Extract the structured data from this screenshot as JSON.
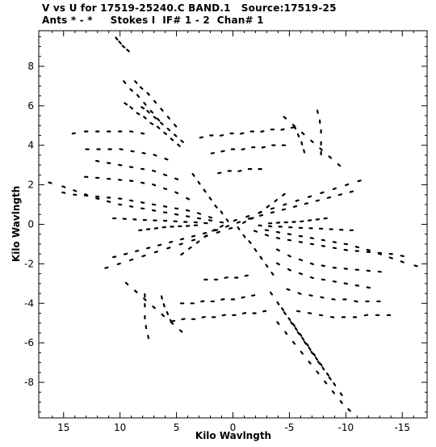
{
  "header": {
    "line1": "V vs U for 17519-25240.C BAND.1   Source:17519-25",
    "line2": "Ants * - *     Stokes I  IF# 1 - 2  Chan# 1"
  },
  "chart_data": {
    "type": "scatter",
    "title": "V vs U for 17519-25240.C BAND.1   Source:17519-25",
    "subtitle": "Ants * - *     Stokes I  IF# 1 - 2  Chan# 1",
    "xlabel": "Kilo Wavlngth",
    "ylabel": "Kilo Wavlngth",
    "x_reversed": true,
    "xlim": [
      17.2,
      -17.2
    ],
    "ylim": [
      -9.8,
      9.8
    ],
    "xticks": [
      15,
      10,
      5,
      0,
      -5,
      -10,
      -15
    ],
    "xtick_labels": [
      "15",
      "10",
      "5",
      "0",
      "-5",
      "-10",
      "-15"
    ],
    "yticks": [
      8,
      6,
      4,
      2,
      0,
      -2,
      -4,
      -6,
      -8
    ],
    "ytick_labels": [
      "8",
      "6",
      "4",
      "2",
      "0",
      "-2",
      "-4",
      "-6",
      "-8"
    ],
    "grid": false,
    "marker_color": "#000000",
    "track_description": "uv-coverage tracks: each series is one baseline arc; the symmetric (-u,-v) tracks are plotted too",
    "series": [
      {
        "u": [
          10.3,
          10.0,
          9.7,
          9.3
        ],
        "v": [
          9.4,
          9.2,
          9.0,
          8.8
        ]
      },
      {
        "u": [
          9.6,
          9.0,
          8.4,
          7.8,
          7.2,
          6.6
        ],
        "v": [
          7.2,
          6.8,
          6.5,
          6.1,
          5.7,
          5.3
        ]
      },
      {
        "u": [
          8.6,
          8.1,
          7.5,
          6.9,
          6.3,
          5.7,
          5.1
        ],
        "v": [
          7.2,
          6.9,
          6.6,
          6.2,
          5.8,
          5.4,
          5.0
        ]
      },
      {
        "u": [
          9.5,
          9.0,
          8.4,
          7.8,
          7.2,
          6.6,
          6.0,
          5.4,
          4.8
        ],
        "v": [
          6.1,
          5.9,
          5.6,
          5.4,
          5.1,
          4.9,
          4.6,
          4.3,
          4.0
        ]
      },
      {
        "u": [
          8.0,
          7.5,
          6.9,
          6.3,
          5.7,
          5.1,
          4.5
        ],
        "v": [
          5.9,
          5.7,
          5.4,
          5.1,
          4.8,
          4.5,
          4.2
        ]
      },
      {
        "u": [
          14.1,
          13.0,
          12.0,
          11.0,
          10.0,
          9.0,
          8.0
        ],
        "v": [
          4.6,
          4.7,
          4.7,
          4.7,
          4.7,
          4.7,
          4.6
        ]
      },
      {
        "u": [
          12.9,
          11.9,
          10.9,
          9.9,
          8.9,
          7.9,
          6.9,
          5.9
        ],
        "v": [
          3.8,
          3.8,
          3.8,
          3.8,
          3.7,
          3.6,
          3.5,
          3.3
        ]
      },
      {
        "u": [
          12.0,
          11.0,
          10.0,
          9.0,
          8.0,
          7.0,
          6.0,
          5.0
        ],
        "v": [
          3.2,
          3.1,
          3.0,
          2.9,
          2.8,
          2.7,
          2.5,
          2.3
        ]
      },
      {
        "u": [
          13.0,
          12.0,
          11.0,
          10.0,
          9.0,
          8.0,
          7.0,
          6.0,
          5.0,
          4.0
        ],
        "v": [
          2.4,
          2.35,
          2.3,
          2.25,
          2.2,
          2.1,
          2.0,
          1.8,
          1.6,
          1.3
        ]
      },
      {
        "u": [
          15.0,
          14.0,
          13.0,
          12.0,
          11.0,
          10.0,
          9.0,
          8.0,
          7.0,
          6.0,
          5.0,
          4.0,
          3.0,
          2.0
        ],
        "v": [
          1.6,
          1.5,
          1.45,
          1.4,
          1.35,
          1.3,
          1.2,
          1.1,
          1.0,
          0.9,
          0.8,
          0.7,
          0.55,
          0.35
        ]
      },
      {
        "u": [
          16.2,
          15.0,
          14.0,
          13.0,
          12.0,
          11.0,
          10.0,
          9.0,
          8.0,
          7.0,
          6.0,
          5.0,
          4.0,
          3.0,
          2.0,
          1.0
        ],
        "v": [
          2.1,
          1.9,
          1.7,
          1.5,
          1.3,
          1.15,
          1.0,
          0.9,
          0.8,
          0.7,
          0.6,
          0.5,
          0.4,
          0.3,
          0.2,
          0.1
        ]
      },
      {
        "u": [
          10.5,
          9.6,
          8.7,
          7.8,
          6.9,
          6.0,
          5.1,
          4.2,
          3.3,
          2.4
        ],
        "v": [
          0.3,
          0.28,
          0.25,
          0.22,
          0.2,
          0.18,
          0.15,
          0.12,
          0.1,
          0.06
        ]
      },
      {
        "u": [
          8.2,
          7.5,
          6.8,
          6.1,
          5.4,
          4.7,
          4.0,
          3.3
        ],
        "v": [
          -0.3,
          -0.25,
          -0.2,
          -0.15,
          -0.12,
          -0.1,
          -0.08,
          -0.05
        ]
      },
      {
        "u": [
          3.5,
          3.0,
          2.5,
          2.0,
          1.5,
          1.0,
          0.5
        ],
        "v": [
          2.5,
          2.1,
          1.7,
          1.3,
          0.9,
          0.6,
          0.2
        ]
      },
      {
        "u": [
          4.5,
          3.8,
          3.1,
          2.4,
          1.7,
          1.0
        ],
        "v": [
          -1.5,
          -1.2,
          -0.9,
          -0.6,
          -0.3,
          -0.1
        ]
      },
      {
        "u": [
          2.8,
          1.9,
          1.0,
          0.1,
          -0.8,
          -1.7,
          -2.6,
          -3.5,
          -4.4,
          -5.3
        ],
        "v": [
          4.4,
          4.5,
          4.5,
          4.6,
          4.6,
          4.7,
          4.7,
          4.8,
          4.8,
          4.9
        ]
      },
      {
        "u": [
          1.8,
          0.9,
          0.0,
          -0.9,
          -1.8,
          -2.7,
          -3.6,
          -4.5
        ],
        "v": [
          3.6,
          3.7,
          3.8,
          3.8,
          3.9,
          3.9,
          4.0,
          4.0
        ]
      },
      {
        "u": [
          1.2,
          0.3,
          -0.6,
          -1.5,
          -2.4
        ],
        "v": [
          2.6,
          2.7,
          2.7,
          2.8,
          2.8
        ]
      },
      {
        "u": [
          -4.6,
          -5.4,
          -6.2,
          -7.0,
          -7.8,
          -8.6,
          -9.4
        ],
        "v": [
          5.4,
          5.0,
          4.6,
          4.2,
          3.8,
          3.4,
          3.0
        ]
      },
      {
        "u": [
          -7.5,
          -7.7,
          -7.8,
          -7.8,
          -7.8
        ],
        "v": [
          5.7,
          5.2,
          4.7,
          4.1,
          3.6
        ]
      },
      {
        "u": [
          -5.5,
          -5.8,
          -6.1,
          -6.3
        ],
        "v": [
          4.9,
          4.5,
          4.1,
          3.7
        ]
      },
      {
        "u": [
          -0.2,
          -1.3,
          -2.4,
          -3.5,
          -4.6,
          -5.7,
          -6.8,
          -7.9,
          -9.0,
          -10.1,
          -11.2
        ],
        "v": [
          0.2,
          0.4,
          0.6,
          0.8,
          1.0,
          1.2,
          1.4,
          1.6,
          1.8,
          2.0,
          2.2
        ]
      },
      {
        "u": [
          -0.5,
          -1.5,
          -2.5,
          -3.5,
          -4.5,
          -5.5,
          -6.5,
          -7.5,
          -8.5,
          -9.5,
          -10.5
        ],
        "v": [
          0.1,
          0.3,
          0.45,
          0.6,
          0.75,
          0.9,
          1.05,
          1.2,
          1.35,
          1.5,
          1.65
        ]
      },
      {
        "u": [
          -10.3,
          -9.6,
          -8.9,
          -8.2,
          -7.5,
          -6.8,
          -6.1,
          -5.4,
          -4.7,
          -4.0
        ],
        "v": [
          -9.4,
          -9.0,
          -8.5,
          -8.0,
          -7.5,
          -7.0,
          -6.5,
          -6.0,
          -5.5,
          -5.0
        ]
      },
      {
        "u": [
          -9.6,
          -9.0,
          -8.4,
          -7.8,
          -7.2,
          -6.6,
          -6.0,
          -5.4
        ],
        "v": [
          -8.6,
          -8.1,
          -7.6,
          -7.1,
          -6.6,
          -6.1,
          -5.6,
          -5.1
        ]
      },
      {
        "u": [
          -8.6,
          -8.0,
          -7.4,
          -6.8,
          -6.2,
          -5.6,
          -5.0,
          -4.4
        ],
        "v": [
          -7.8,
          -7.3,
          -6.8,
          -6.3,
          -5.8,
          -5.3,
          -4.8,
          -4.3
        ]
      },
      {
        "u": [
          -7.6,
          -7.0,
          -6.4,
          -5.8,
          -5.2,
          -4.6,
          -4.0,
          -3.4
        ],
        "v": [
          -7.0,
          -6.5,
          -6.0,
          -5.5,
          -5.0,
          -4.5,
          -4.0,
          -3.5
        ]
      },
      {
        "u": [
          -13.8,
          -12.8,
          -11.8,
          -10.8,
          -9.8,
          -8.8,
          -7.8,
          -6.8,
          -5.8
        ],
        "v": [
          -4.6,
          -4.6,
          -4.6,
          -4.7,
          -4.7,
          -4.7,
          -4.6,
          -4.5,
          -4.4
        ]
      },
      {
        "u": [
          -12.9,
          -11.9,
          -10.9,
          -9.9,
          -8.9,
          -7.9,
          -6.9,
          -5.9,
          -4.9
        ],
        "v": [
          -3.9,
          -3.9,
          -3.9,
          -3.8,
          -3.8,
          -3.7,
          -3.6,
          -3.5,
          -3.3
        ]
      },
      {
        "u": [
          -12.0,
          -11.0,
          -10.0,
          -9.0,
          -8.0,
          -7.0,
          -6.0,
          -5.0,
          -4.0
        ],
        "v": [
          -3.2,
          -3.1,
          -3.0,
          -2.9,
          -2.8,
          -2.7,
          -2.5,
          -2.3,
          -2.0
        ]
      },
      {
        "u": [
          -15.0,
          -14.0,
          -13.0,
          -12.0,
          -11.0,
          -10.0,
          -9.0,
          -8.0,
          -7.0,
          -6.0,
          -5.0,
          -4.0,
          -3.0,
          -2.0
        ],
        "v": [
          -1.6,
          -1.5,
          -1.45,
          -1.4,
          -1.35,
          -1.3,
          -1.2,
          -1.1,
          -1.0,
          -0.9,
          -0.8,
          -0.7,
          -0.55,
          -0.35
        ]
      },
      {
        "u": [
          -16.2,
          -15.0,
          -14.0,
          -13.0,
          -12.0,
          -11.0,
          -10.0,
          -9.0,
          -8.0,
          -7.0,
          -6.0,
          -5.0,
          -4.0,
          -3.0
        ],
        "v": [
          -2.1,
          -1.9,
          -1.7,
          -1.5,
          -1.3,
          -1.15,
          -1.0,
          -0.9,
          -0.8,
          -0.7,
          -0.6,
          -0.5,
          -0.4,
          -0.3
        ]
      },
      {
        "u": [
          -13.0,
          -12.0,
          -11.0,
          -10.0,
          -9.0,
          -8.0,
          -7.0,
          -6.0,
          -5.0,
          -4.0
        ],
        "v": [
          -2.4,
          -2.35,
          -2.3,
          -2.25,
          -2.2,
          -2.1,
          -2.0,
          -1.8,
          -1.6,
          -1.3
        ]
      },
      {
        "u": [
          -3.5,
          -3.0,
          -2.5,
          -2.0,
          -1.5,
          -1.0,
          -0.5
        ],
        "v": [
          -2.5,
          -2.1,
          -1.7,
          -1.3,
          -0.9,
          -0.6,
          -0.2
        ]
      },
      {
        "u": [
          -4.5,
          -3.8,
          -3.1,
          -2.4,
          -1.7,
          -1.0
        ],
        "v": [
          1.5,
          1.2,
          0.9,
          0.6,
          0.3,
          0.1
        ]
      },
      {
        "u": [
          -2.8,
          -1.9,
          -1.0,
          -0.1,
          0.8,
          1.7,
          2.6,
          3.5,
          4.4,
          5.3
        ],
        "v": [
          -4.4,
          -4.5,
          -4.5,
          -4.6,
          -4.6,
          -4.7,
          -4.7,
          -4.8,
          -4.8,
          -4.9
        ]
      },
      {
        "u": [
          -1.8,
          -0.9,
          0.0,
          0.9,
          1.8,
          2.7,
          3.6,
          4.5
        ],
        "v": [
          -3.6,
          -3.7,
          -3.8,
          -3.8,
          -3.9,
          -3.9,
          -4.0,
          -4.0
        ]
      },
      {
        "u": [
          -1.2,
          -0.3,
          0.6,
          1.5,
          2.4
        ],
        "v": [
          -2.6,
          -2.7,
          -2.7,
          -2.8,
          -2.8
        ]
      },
      {
        "u": [
          4.6,
          5.4,
          6.2,
          7.0,
          7.8,
          8.6,
          9.4
        ],
        "v": [
          -5.4,
          -5.0,
          -4.6,
          -4.2,
          -3.8,
          -3.4,
          -3.0
        ]
      },
      {
        "u": [
          7.5,
          7.7,
          7.8,
          7.8,
          7.8
        ],
        "v": [
          -5.7,
          -5.2,
          -4.7,
          -4.1,
          -3.6
        ]
      },
      {
        "u": [
          5.5,
          5.8,
          6.1,
          6.3
        ],
        "v": [
          -4.9,
          -4.5,
          -4.1,
          -3.7
        ]
      },
      {
        "u": [
          0.2,
          1.3,
          2.4,
          3.5,
          4.6,
          5.7,
          6.8,
          7.9,
          9.0,
          10.1,
          11.2
        ],
        "v": [
          -0.2,
          -0.4,
          -0.6,
          -0.8,
          -1.0,
          -1.2,
          -1.4,
          -1.6,
          -1.8,
          -2.0,
          -2.2
        ]
      },
      {
        "u": [
          0.5,
          1.5,
          2.5,
          3.5,
          4.5,
          5.5,
          6.5,
          7.5,
          8.5,
          9.5,
          10.5
        ],
        "v": [
          -0.1,
          -0.3,
          -0.45,
          -0.6,
          -0.75,
          -0.9,
          -1.05,
          -1.2,
          -1.35,
          -1.5,
          -1.65
        ]
      },
      {
        "u": [
          -10.5,
          -9.6,
          -8.7,
          -7.8,
          -6.9,
          -6.0,
          -5.1,
          -4.2,
          -3.3,
          -2.4
        ],
        "v": [
          -0.3,
          -0.28,
          -0.25,
          -0.22,
          -0.2,
          -0.18,
          -0.15,
          -0.12,
          -0.1,
          -0.06
        ]
      },
      {
        "u": [
          -8.2,
          -7.5,
          -6.8,
          -6.1,
          -5.4,
          -4.7,
          -4.0,
          -3.3
        ],
        "v": [
          0.3,
          0.25,
          0.2,
          0.15,
          0.12,
          0.1,
          0.08,
          0.05
        ]
      }
    ]
  }
}
